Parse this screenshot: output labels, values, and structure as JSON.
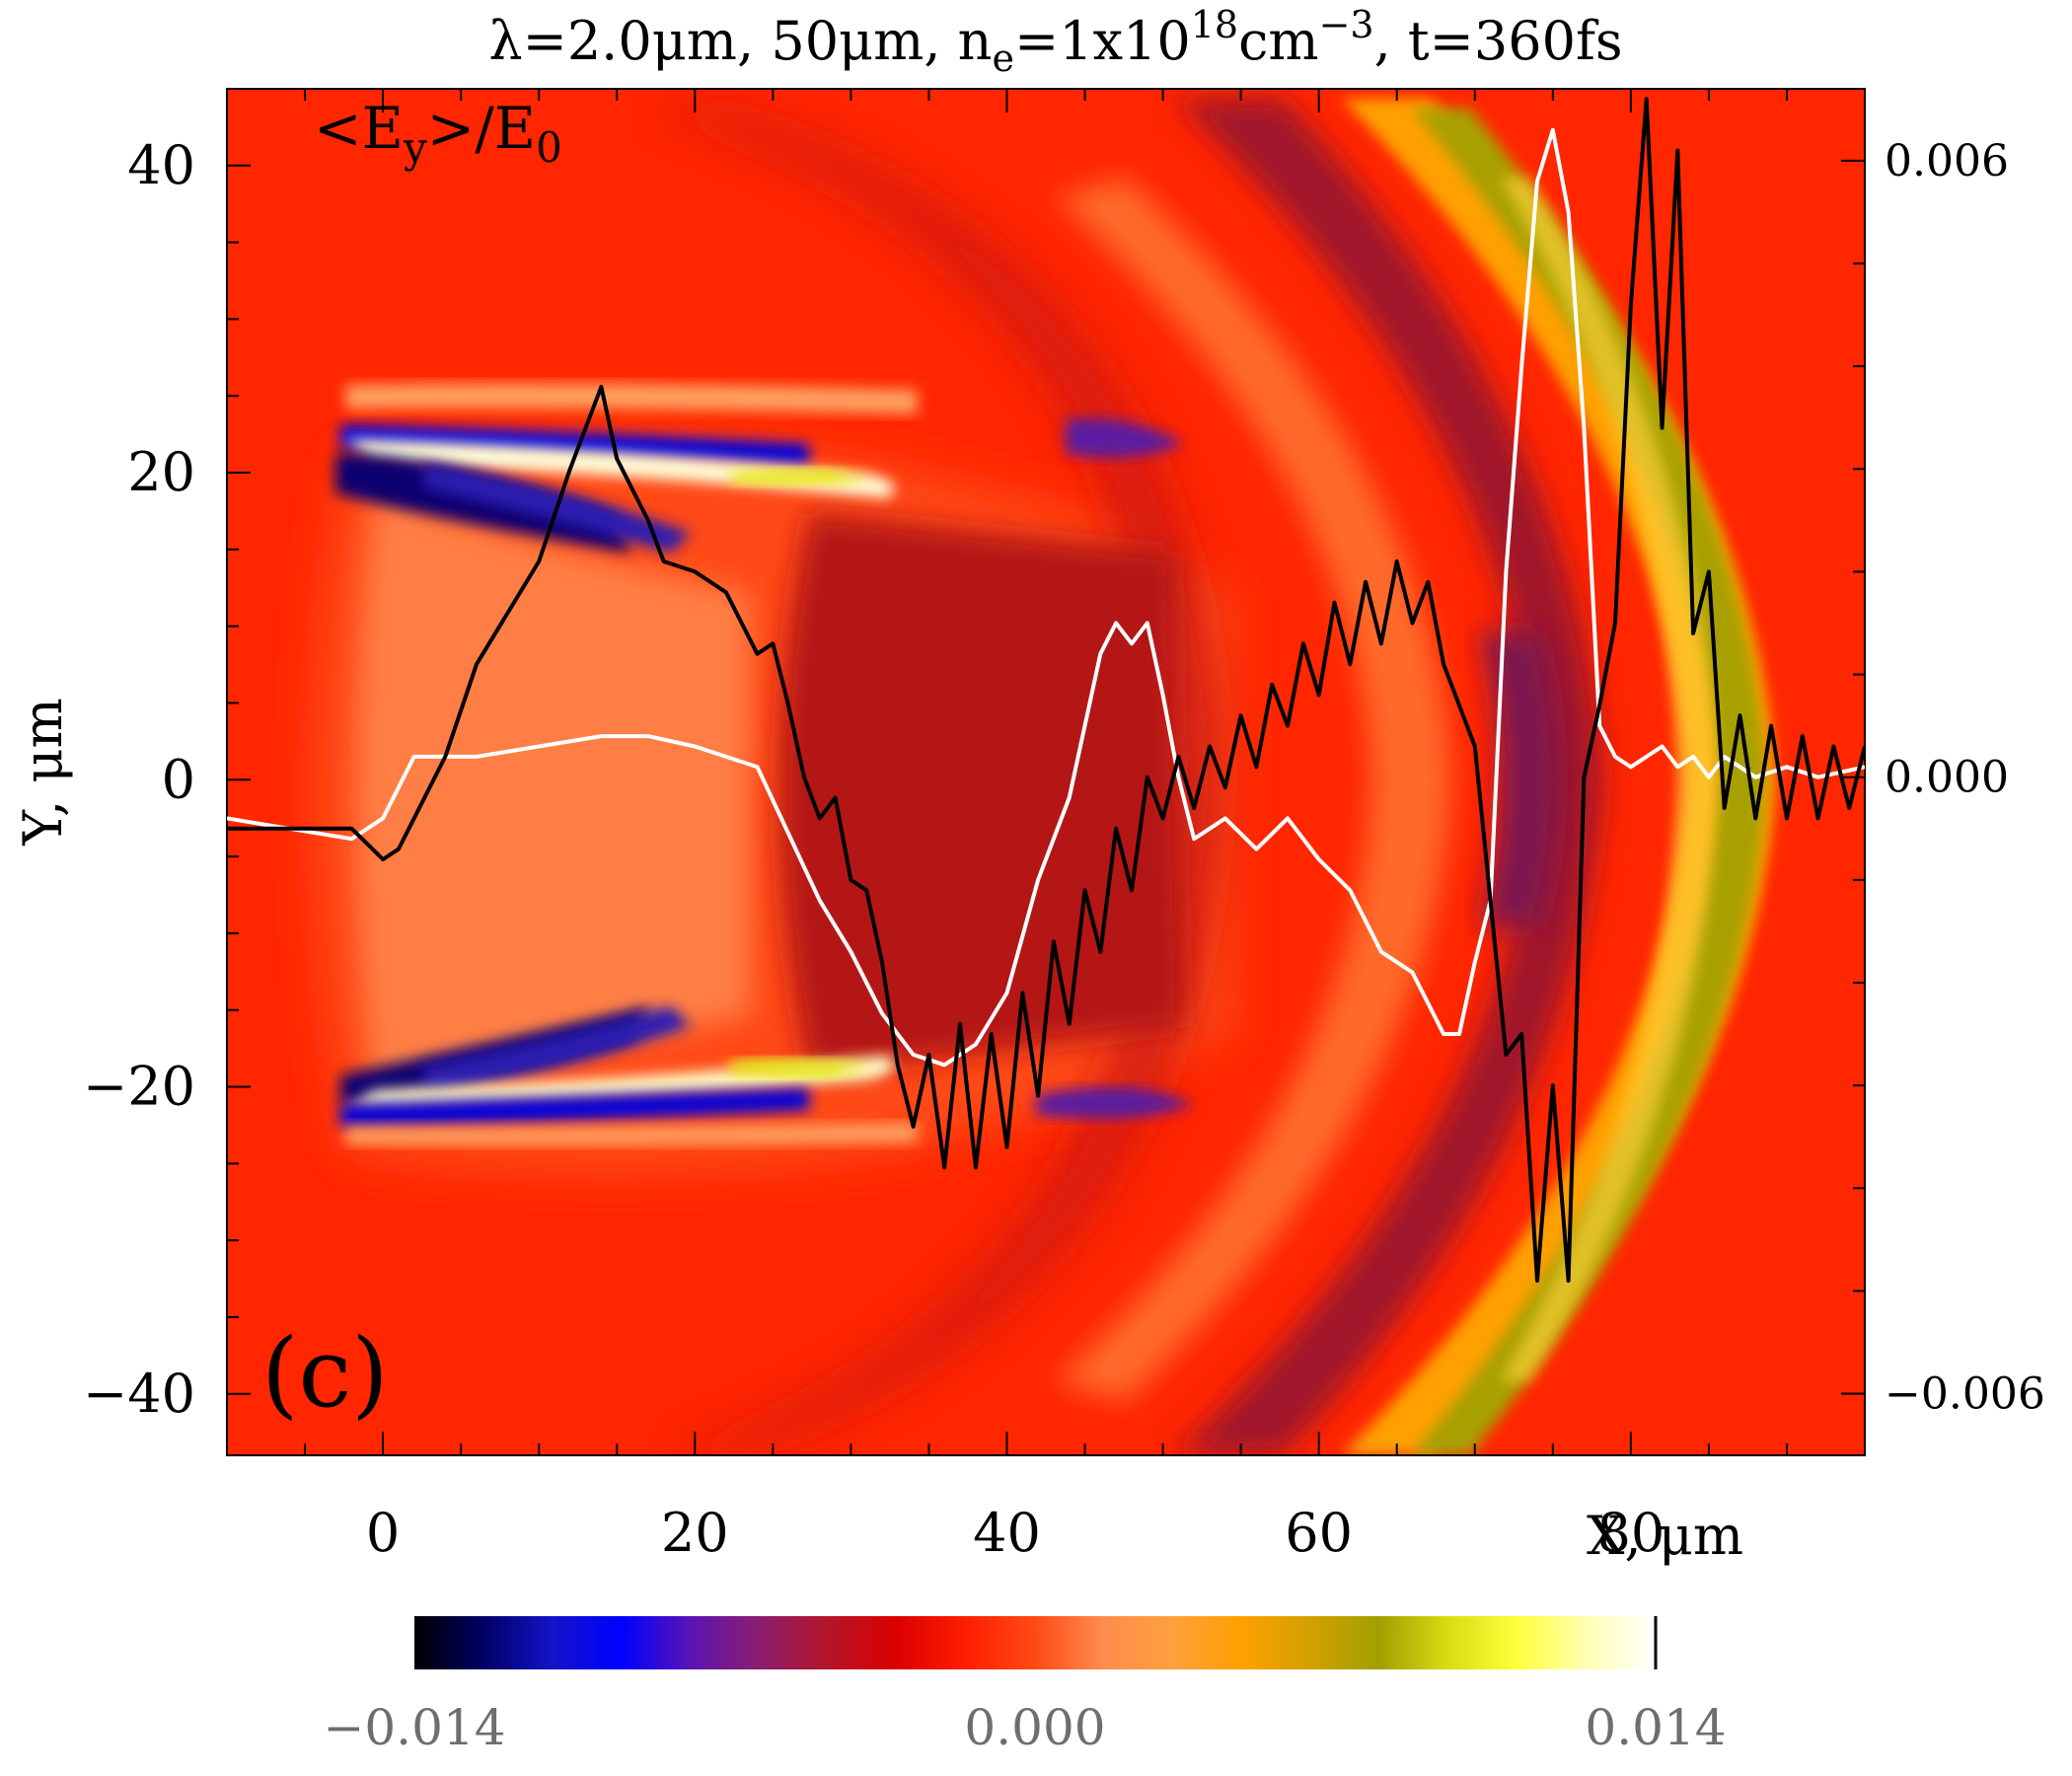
{
  "chart_data": {
    "type": "heatmap",
    "title": {
      "main": "λ=2.0μm, 50μm, n",
      "sub_e": "e",
      "mid": "=1x10",
      "sup_18": "18",
      "cm": "cm",
      "sup_m3": "−3",
      "tail": ", t=360fs"
    },
    "field_label": {
      "open": "<E",
      "sub": "y",
      "close": ">/E",
      "sub0": "0"
    },
    "panel_label": "(c)",
    "xlabel": "X, μm",
    "ylabel": "Y, μm",
    "xlim": [
      -10,
      95
    ],
    "ylim": [
      -44,
      45
    ],
    "xticks": [
      "0",
      "20",
      "40",
      "60",
      "80"
    ],
    "xtick_values": [
      0,
      20,
      40,
      60,
      80
    ],
    "yticks": [
      "40",
      "20",
      "0",
      "−20",
      "−40"
    ],
    "ytick_values": [
      40,
      20,
      0,
      -20,
      -40
    ],
    "right_axis": {
      "ticks": [
        "0.006",
        "0.000",
        "−0.006"
      ],
      "tick_values": [
        0.006,
        0.0,
        -0.006
      ],
      "ylim": [
        -0.0066,
        0.0067
      ]
    },
    "colorbar": {
      "range": [
        -0.014,
        0.014
      ],
      "ticks": [
        "−0.014",
        "0.000",
        "0.014"
      ],
      "tick_values": [
        -0.014,
        0.0,
        0.014
      ],
      "colors": [
        "#000000",
        "#000066",
        "#1414c8",
        "#0000ff",
        "#5a14b4",
        "#8c1e6e",
        "#b41428",
        "#dc0000",
        "#ff1e00",
        "#ff4a14",
        "#ff8c50",
        "#ffa03c",
        "#ffa000",
        "#d2a000",
        "#a0a000",
        "#dcdc14",
        "#ffff3c",
        "#ffffb4",
        "#ffffff"
      ]
    },
    "series": [
      {
        "color": "#000000",
        "x": [
          -10,
          -2,
          0,
          1,
          2,
          4,
          6,
          8,
          10,
          12,
          14,
          15,
          16,
          17,
          18,
          20,
          22,
          24,
          25,
          26,
          27,
          28,
          29,
          30,
          31,
          32,
          33,
          34,
          35,
          36,
          37,
          38,
          39,
          40,
          41,
          42,
          43,
          44,
          45,
          46,
          47,
          48,
          49,
          50,
          51,
          52,
          53,
          54,
          55,
          56,
          57,
          58,
          59,
          60,
          61,
          62,
          63,
          64,
          65,
          66,
          67,
          68,
          69,
          70,
          71,
          72,
          73,
          74,
          75,
          76,
          77,
          78,
          79,
          80,
          81,
          82,
          83,
          84,
          85,
          86,
          87,
          88,
          89,
          90,
          91,
          92,
          93,
          94,
          95
        ],
        "y": [
          -0.0005,
          -0.0005,
          -0.0008,
          -0.0007,
          -0.0004,
          0.0002,
          0.0011,
          0.0016,
          0.0021,
          0.003,
          0.0038,
          0.0031,
          0.0028,
          0.0025,
          0.0021,
          0.002,
          0.0018,
          0.0012,
          0.0013,
          0.0007,
          0.0,
          -0.0004,
          -0.0002,
          -0.001,
          -0.0011,
          -0.0018,
          -0.0028,
          -0.0034,
          -0.0027,
          -0.0038,
          -0.0024,
          -0.0038,
          -0.0025,
          -0.0036,
          -0.0021,
          -0.0031,
          -0.0016,
          -0.0024,
          -0.0011,
          -0.0017,
          -0.0005,
          -0.0011,
          0.0,
          -0.0004,
          0.0002,
          -0.0003,
          0.0003,
          -0.0001,
          0.0006,
          0.0001,
          0.0009,
          0.0005,
          0.0013,
          0.0008,
          0.0017,
          0.0011,
          0.0019,
          0.0013,
          0.0021,
          0.0015,
          0.0019,
          0.0011,
          0.0007,
          0.0003,
          -0.0012,
          -0.0027,
          -0.0025,
          -0.0049,
          -0.003,
          -0.0049,
          0.0,
          0.0007,
          0.0015,
          0.0046,
          0.0066,
          0.0034,
          0.0061,
          0.0014,
          0.002,
          -0.0003,
          0.0006,
          -0.0004,
          0.0005,
          -0.0004,
          0.0004,
          -0.0004,
          0.0003,
          -0.0003,
          0.0003
        ]
      },
      {
        "color": "#ffffff",
        "x": [
          -10,
          -2,
          0,
          2,
          4,
          6,
          10,
          14,
          17,
          20,
          24,
          28,
          30,
          32,
          34,
          36,
          38,
          40,
          42,
          44,
          46,
          47,
          48,
          49,
          50,
          51,
          52,
          54,
          56,
          58,
          60,
          62,
          64,
          66,
          68,
          69,
          70,
          71,
          72,
          73,
          74,
          75,
          76,
          77,
          78,
          79,
          80,
          81,
          82,
          83,
          84,
          85,
          86,
          88,
          90,
          92,
          95
        ],
        "y": [
          -0.0004,
          -0.0006,
          -0.0004,
          0.0002,
          0.0002,
          0.0002,
          0.0003,
          0.0004,
          0.0004,
          0.0003,
          0.0001,
          -0.0012,
          -0.0017,
          -0.0023,
          -0.0027,
          -0.0028,
          -0.0026,
          -0.0021,
          -0.001,
          -0.0002,
          0.0012,
          0.0015,
          0.0013,
          0.0015,
          0.0008,
          0.0,
          -0.0006,
          -0.0004,
          -0.0007,
          -0.0004,
          -0.0008,
          -0.0011,
          -0.0017,
          -0.0019,
          -0.0025,
          -0.0025,
          -0.0018,
          -0.0012,
          0.002,
          0.004,
          0.0058,
          0.0063,
          0.0055,
          0.0034,
          0.0005,
          0.0002,
          0.0001,
          0.0002,
          0.0003,
          0.0001,
          0.0002,
          0.0,
          0.0002,
          0.0,
          0.0001,
          0.0,
          0.0001
        ]
      }
    ]
  }
}
